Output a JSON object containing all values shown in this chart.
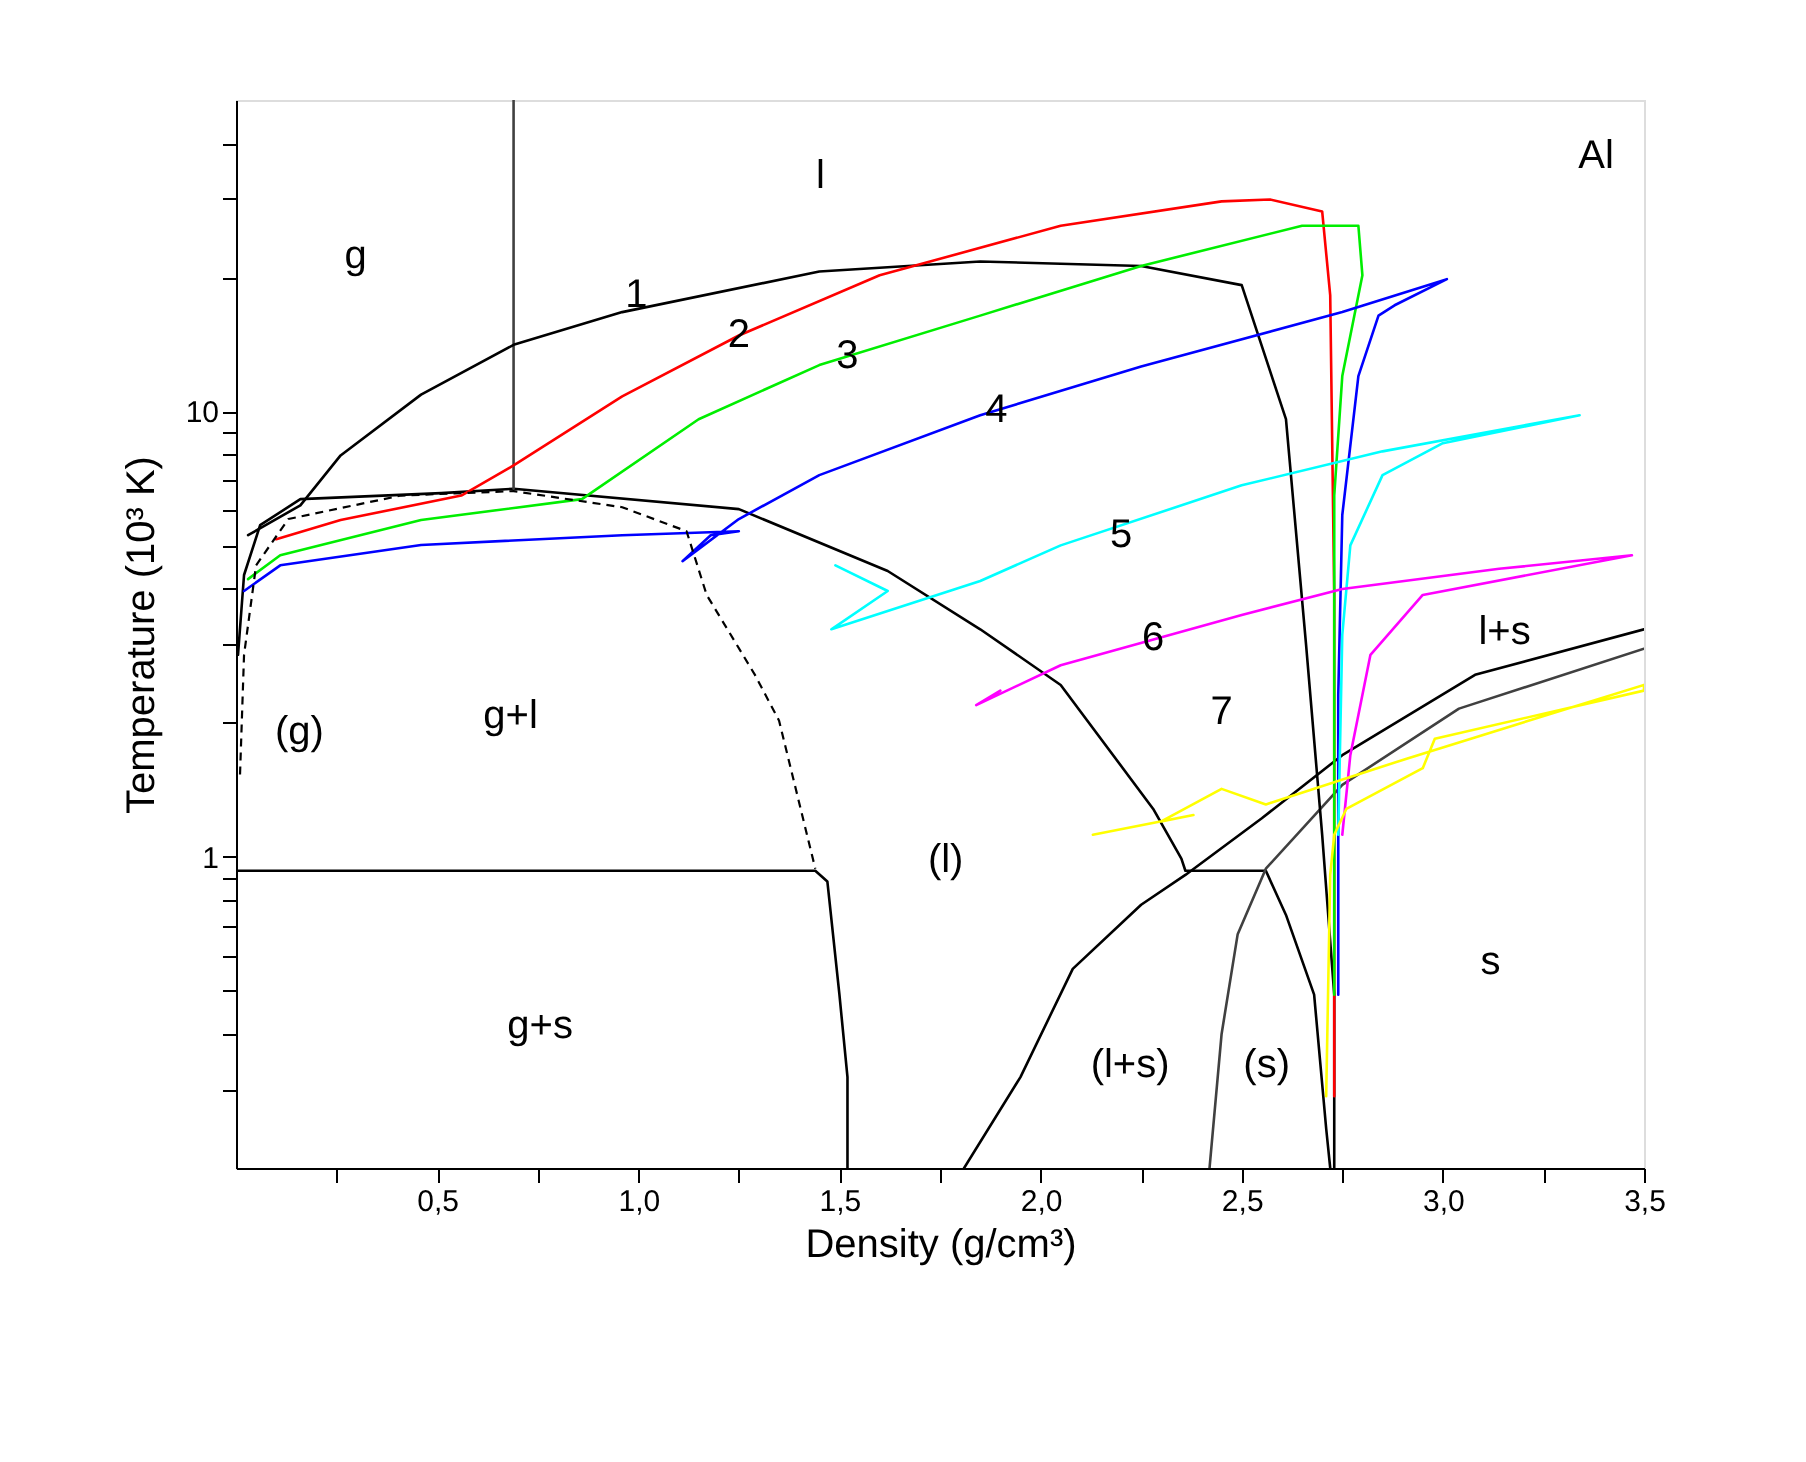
{
  "chart_data": {
    "type": "line",
    "xlabel": "Density (g/cm³)",
    "ylabel": "Temperature (10³ K)",
    "log": "y",
    "grid": false,
    "legend": false,
    "xlim": [
      0,
      3.5
    ],
    "ylim": [
      0.2,
      50
    ],
    "xticks": [
      {
        "value": 0.25,
        "label": null
      },
      {
        "value": 0.5,
        "label": "0,5"
      },
      {
        "value": 0.75,
        "label": null
      },
      {
        "value": 1.0,
        "label": "1,0"
      },
      {
        "value": 1.25,
        "label": null
      },
      {
        "value": 1.5,
        "label": "1,5"
      },
      {
        "value": 1.75,
        "label": null
      },
      {
        "value": 2.0,
        "label": "2,0"
      },
      {
        "value": 2.25,
        "label": null
      },
      {
        "value": 2.5,
        "label": "2,5"
      },
      {
        "value": 2.75,
        "label": null
      },
      {
        "value": 3.0,
        "label": "3,0"
      },
      {
        "value": 3.25,
        "label": null
      },
      {
        "value": 3.5,
        "label": "3,5"
      }
    ],
    "yticks": [
      {
        "value": 0.3,
        "label": null
      },
      {
        "value": 0.4,
        "label": null
      },
      {
        "value": 0.5,
        "label": null
      },
      {
        "value": 0.6,
        "label": null
      },
      {
        "value": 0.7,
        "label": null
      },
      {
        "value": 0.8,
        "label": null
      },
      {
        "value": 0.9,
        "label": null
      },
      1,
      {
        "value": 2,
        "label": null
      },
      {
        "value": 3,
        "label": null
      },
      {
        "value": 4,
        "label": null
      },
      {
        "value": 5,
        "label": null
      },
      {
        "value": 6,
        "label": null
      },
      {
        "value": 7,
        "label": null
      },
      {
        "value": 8,
        "label": null
      },
      {
        "value": 9,
        "label": null
      },
      10,
      {
        "value": 20,
        "label": null
      },
      {
        "value": 30,
        "label": null
      },
      {
        "value": 40,
        "label": null
      }
    ],
    "series": [
      {
        "color": "#000000",
        "x": [
          0.005,
          0.02,
          0.06,
          0.16,
          0.51,
          0.69,
          1.25,
          1.62,
          1.85,
          2.05,
          2.28,
          2.35,
          2.36,
          2.56,
          2.61,
          2.68,
          2.71,
          2.72
        ],
        "values": [
          2.84,
          4.29,
          5.55,
          6.35,
          6.55,
          6.7,
          6.03,
          4.38,
          3.24,
          2.43,
          1.28,
          0.99,
          0.93,
          0.93,
          0.74,
          0.49,
          0.245,
          0.2
        ]
      },
      {
        "color": "#404040",
        "x": [
          0.69,
          0.69
        ],
        "values": [
          6.7,
          50
        ]
      },
      {
        "color": "#000000",
        "line_style": "dashed",
        "x": [
          0.01,
          0.02,
          0.05,
          0.13,
          0.41,
          0.69,
          0.96,
          1.12,
          1.17,
          1.29,
          1.35,
          1.44
        ],
        "values": [
          1.53,
          2.84,
          4.51,
          5.73,
          6.47,
          6.62,
          6.09,
          5.38,
          3.87,
          2.56,
          2.02,
          0.94
        ]
      },
      {
        "color": "#000000",
        "x": [
          0,
          1.44,
          1.47,
          1.5,
          1.52,
          1.52
        ],
        "values": [
          0.93,
          0.93,
          0.88,
          0.49,
          0.32,
          0.2
        ]
      },
      {
        "color": "#000000",
        "x": [
          1.81,
          1.95,
          2.08,
          2.25,
          2.36,
          2.55,
          2.75,
          3.08,
          3.5
        ],
        "values": [
          0.2,
          0.32,
          0.56,
          0.78,
          0.91,
          1.22,
          1.69,
          2.56,
          3.24
        ]
      },
      {
        "color": "#404040",
        "x": [
          2.42,
          2.45,
          2.49,
          2.56,
          2.75,
          3.04,
          3.5
        ],
        "values": [
          0.2,
          0.4,
          0.67,
          0.94,
          1.45,
          2.15,
          2.93
        ]
      },
      {
        "color": "#000000",
        "x": [
          0.03,
          0.16,
          0.26,
          0.46,
          0.69,
          0.96,
          1.45,
          1.85,
          2.25,
          2.5,
          2.61,
          2.66,
          2.7,
          2.73,
          2.73
        ],
        "values": [
          5.27,
          6.15,
          7.96,
          10.9,
          14.1,
          16.7,
          20.6,
          21.7,
          21.2,
          19.2,
          9.6,
          2.99,
          1.12,
          0.49,
          0.2
        ]
      },
      {
        "color": "#ff0000",
        "x": [
          0.1,
          0.26,
          0.56,
          0.69,
          0.96,
          1.25,
          1.6,
          2.05,
          2.45,
          2.57,
          2.7,
          2.72,
          2.73,
          2.73
        ],
        "values": [
          5.16,
          5.7,
          6.47,
          7.56,
          10.8,
          14.8,
          20.2,
          26.1,
          29.6,
          29.9,
          28.1,
          18.2,
          3.87,
          0.29
        ]
      },
      {
        "color": "#00ee00",
        "x": [
          0.03,
          0.11,
          0.46,
          0.86,
          1.15,
          1.45,
          1.85,
          2.25,
          2.65,
          2.79,
          2.8,
          2.75,
          2.73,
          2.73,
          2.73
        ],
        "values": [
          4.2,
          4.75,
          5.7,
          6.35,
          9.6,
          12.7,
          16.4,
          21.2,
          26.1,
          26.1,
          20.2,
          12.0,
          6.47,
          2.31,
          0.49
        ]
      },
      {
        "color": "#0000ff",
        "x": [
          0.02,
          0.11,
          0.46,
          0.96,
          1.25,
          1.18,
          1.11,
          1.25,
          1.45,
          1.85,
          2.25,
          2.75,
          3.01,
          2.88,
          2.84,
          2.79,
          2.75,
          2.74,
          2.74
        ],
        "values": [
          3.95,
          4.51,
          5.01,
          5.27,
          5.38,
          5.27,
          4.61,
          5.73,
          7.19,
          9.8,
          12.6,
          16.7,
          19.8,
          17.3,
          16.4,
          12.0,
          5.85,
          2.31,
          0.49
        ]
      },
      {
        "color": "#00ffff",
        "x": [
          1.49,
          1.62,
          1.48,
          1.85,
          2.05,
          2.5,
          2.85,
          3.34,
          3.0,
          2.85,
          2.77,
          2.75,
          2.74
        ],
        "values": [
          4.51,
          3.95,
          3.24,
          4.16,
          5.0,
          6.82,
          8.13,
          9.8,
          8.48,
          7.19,
          5.0,
          3.15,
          1.12
        ]
      },
      {
        "color": "#ff00ff",
        "x": [
          1.9,
          1.84,
          2.05,
          2.5,
          2.75,
          3.14,
          3.47,
          2.95,
          2.82,
          2.77,
          2.75
        ],
        "values": [
          2.36,
          2.19,
          2.69,
          3.49,
          3.99,
          4.43,
          4.75,
          3.87,
          2.84,
          1.69,
          1.12
        ]
      },
      {
        "color": "#ffff00",
        "x": [
          2.13,
          2.38,
          2.3,
          2.45,
          2.56,
          2.91,
          3.5,
          3.5,
          2.98,
          2.95,
          2.76,
          2.73,
          2.72,
          2.71
        ],
        "values": [
          1.12,
          1.24,
          1.2,
          1.42,
          1.31,
          1.66,
          2.43,
          2.36,
          1.84,
          1.58,
          1.28,
          1.12,
          0.91,
          0.29
        ]
      }
    ],
    "annotations": [
      "Al",
      "g",
      "l",
      {
        "text": "1",
        "x": 0.995,
        "y": 18.2
      },
      {
        "text": "2",
        "x": 1.25,
        "y": 14.8
      },
      {
        "text": "3",
        "x": 1.52,
        "y": 13.3
      },
      {
        "text": "4",
        "x": 1.89,
        "y": 10.05
      },
      {
        "text": "5",
        "x": 2.2,
        "y": 5.27
      },
      {
        "text": "6",
        "x": 2.28,
        "y": 3.1
      },
      "7",
      "l+s",
      "(g)",
      "g+l",
      "(l)",
      "g+s",
      "(l+s)",
      "(s)",
      "s"
    ]
  }
}
